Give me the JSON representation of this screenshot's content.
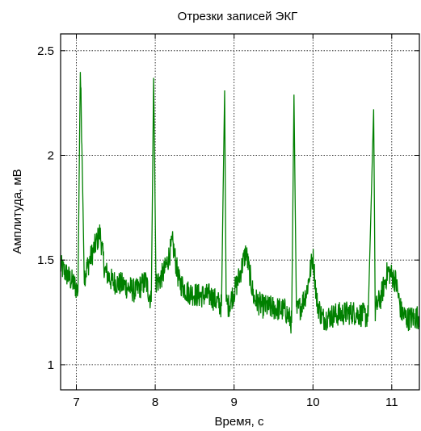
{
  "chart_data": {
    "type": "line",
    "title": "Отрезки записей ЭКГ",
    "xlabel": "Время, с",
    "ylabel": "Амплитуда, мВ",
    "xlim": [
      6.8,
      11.35
    ],
    "ylim": [
      0.88,
      2.58
    ],
    "x_ticks": [
      7,
      8,
      9,
      10,
      11
    ],
    "y_ticks": [
      1,
      1.5,
      2,
      2.5
    ],
    "x_tick_labels": [
      "7",
      "8",
      "9",
      "10",
      "11"
    ],
    "y_tick_labels": [
      "1",
      "1.5",
      "2",
      "2.5"
    ],
    "grid": true,
    "line_color": "#008000",
    "series": [
      {
        "name": "",
        "x": [
          6.8,
          6.9,
          6.98,
          7.02,
          7.05,
          7.07,
          7.1,
          7.15,
          7.22,
          7.3,
          7.36,
          7.45,
          7.6,
          7.75,
          7.88,
          7.95,
          7.98,
          8.01,
          8.05,
          8.12,
          8.22,
          8.3,
          8.4,
          8.55,
          8.7,
          8.84,
          8.88,
          8.9,
          8.93,
          8.97,
          9.05,
          9.15,
          9.25,
          9.35,
          9.5,
          9.65,
          9.73,
          9.76,
          9.79,
          9.85,
          9.92,
          10.0,
          10.05,
          10.12,
          10.3,
          10.5,
          10.7,
          10.77,
          10.79,
          10.81,
          10.86,
          10.95,
          11.05,
          11.12,
          11.2,
          11.35
        ],
        "y": [
          1.47,
          1.42,
          1.38,
          1.35,
          2.41,
          2.05,
          1.42,
          1.48,
          1.55,
          1.63,
          1.45,
          1.4,
          1.38,
          1.35,
          1.4,
          1.3,
          2.37,
          1.4,
          1.4,
          1.45,
          1.58,
          1.4,
          1.35,
          1.33,
          1.33,
          1.28,
          2.31,
          1.3,
          1.28,
          1.32,
          1.4,
          1.54,
          1.32,
          1.28,
          1.27,
          1.26,
          1.2,
          2.29,
          1.25,
          1.28,
          1.35,
          1.52,
          1.3,
          1.22,
          1.24,
          1.25,
          1.23,
          2.22,
          1.25,
          1.28,
          1.32,
          1.45,
          1.4,
          1.25,
          1.22,
          1.23
        ]
      }
    ]
  }
}
